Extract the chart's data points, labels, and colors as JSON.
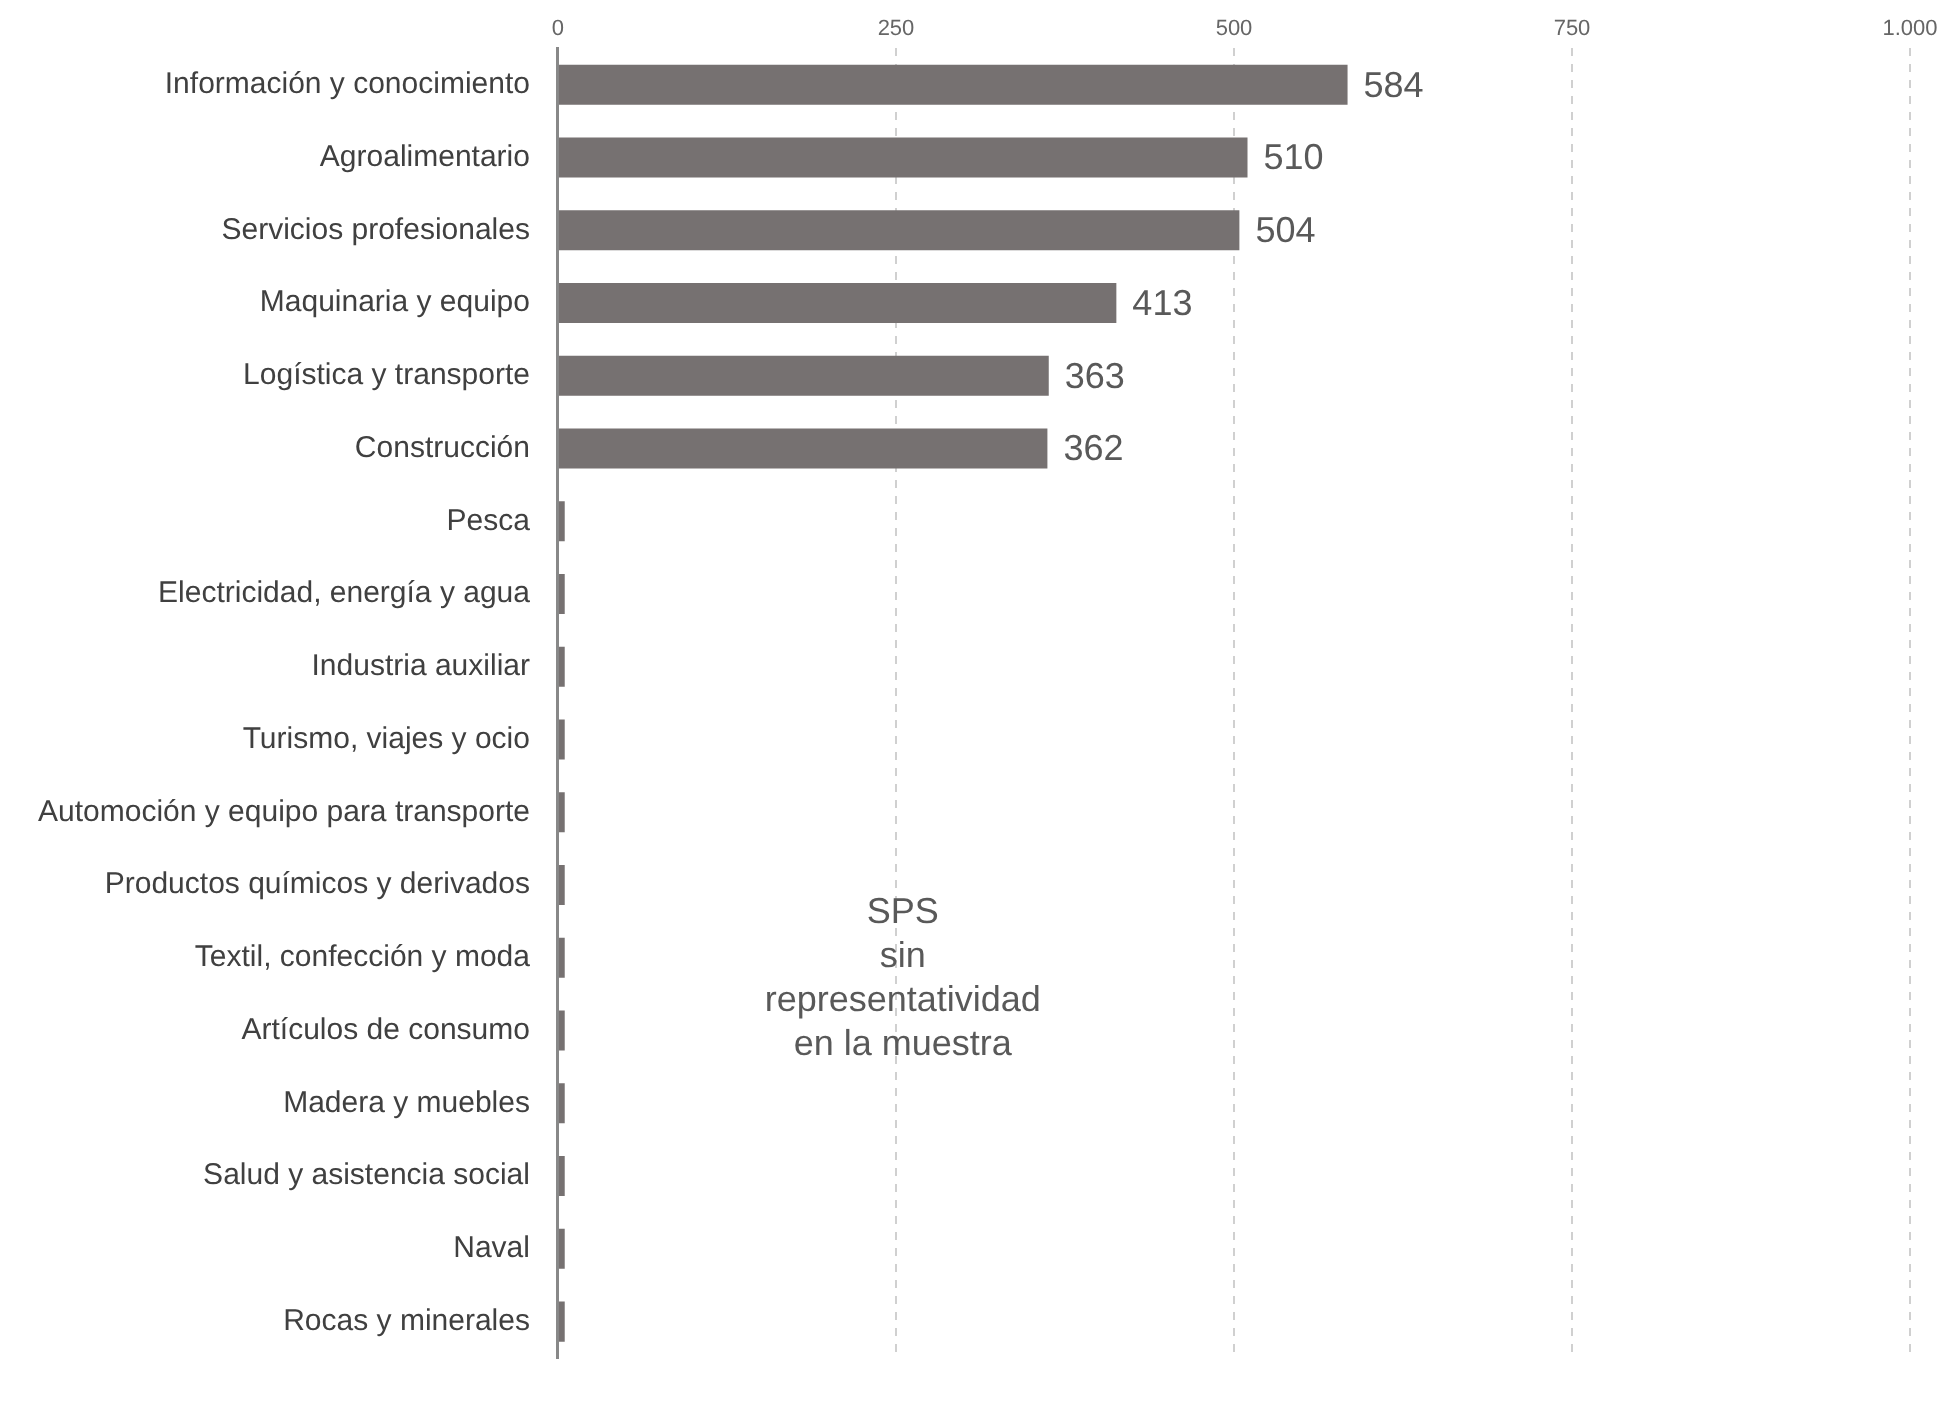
{
  "chart_data": {
    "type": "bar",
    "orientation": "horizontal",
    "categories": [
      "Información y conocimiento",
      "Agroalimentario",
      "Servicios profesionales",
      "Maquinaria y equipo",
      "Logística y transporte",
      "Construcción",
      "Pesca",
      "Electricidad, energía y agua",
      "Industria auxiliar",
      "Turismo, viajes y ocio",
      "Automoción y equipo para transporte",
      "Productos químicos y derivados",
      "Textil, confección y moda",
      "Artículos de consumo",
      "Madera y muebles",
      "Salud y asistencia social",
      "Naval",
      "Rocas y minerales"
    ],
    "values": [
      584,
      510,
      504,
      413,
      363,
      362,
      5,
      5,
      5,
      5,
      5,
      5,
      5,
      5,
      5,
      5,
      5,
      5
    ],
    "value_labels": [
      "584",
      "510",
      "504",
      "413",
      "363",
      "362",
      null,
      null,
      null,
      null,
      null,
      null,
      null,
      null,
      null,
      null,
      null,
      null
    ],
    "color": "#767171",
    "xlim": [
      0,
      1000
    ],
    "xticks": [
      0,
      250,
      500,
      750,
      {
        "value": 1000,
        "label": "1.000"
      }
    ],
    "grid": "x",
    "annotations": [
      "SPS\nsin\nrepresentatividad\nen la muestra"
    ]
  }
}
